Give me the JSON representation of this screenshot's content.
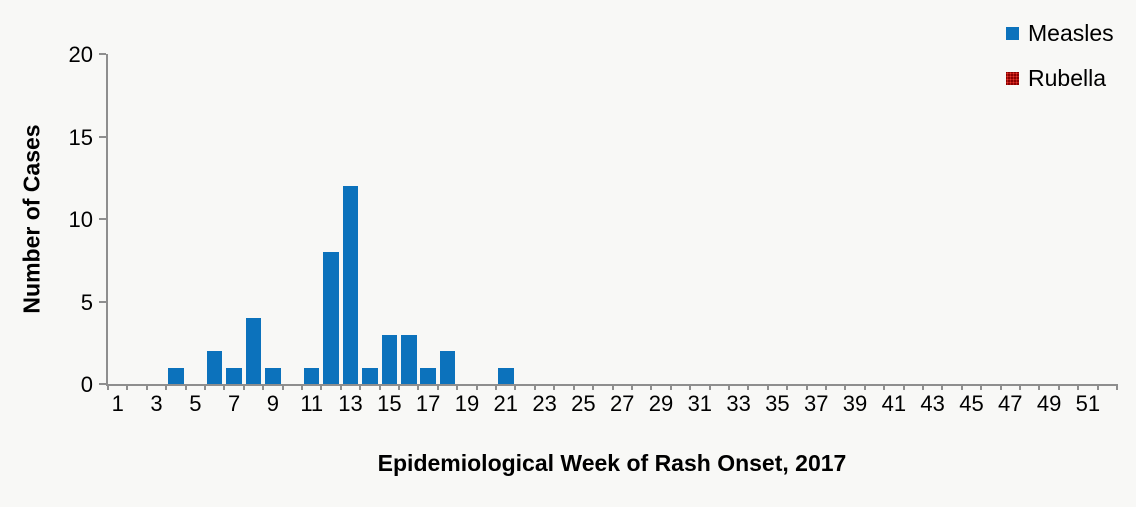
{
  "chart": {
    "background_color": "#F8F8F6",
    "axis_color": "#8E8E8E",
    "text_color": "#000000"
  },
  "chart_data": {
    "type": "bar",
    "title": "",
    "xlabel": "Epidemiological Week of Rash Onset, 2017",
    "ylabel": "Number of Cases",
    "categories": [
      1,
      2,
      3,
      4,
      5,
      6,
      7,
      8,
      9,
      10,
      11,
      12,
      13,
      14,
      15,
      16,
      17,
      18,
      19,
      20,
      21,
      22,
      23,
      24,
      25,
      26,
      27,
      28,
      29,
      30,
      31,
      32,
      33,
      34,
      35,
      36,
      37,
      38,
      39,
      40,
      41,
      42,
      43,
      44,
      45,
      46,
      47,
      48,
      49,
      50,
      51,
      52
    ],
    "x_tick_labels": [
      "1",
      "3",
      "5",
      "7",
      "9",
      "11",
      "13",
      "15",
      "17",
      "19",
      "21",
      "23",
      "25",
      "27",
      "29",
      "31",
      "33",
      "35",
      "37",
      "39",
      "41",
      "43",
      "45",
      "47",
      "49",
      "51"
    ],
    "yticks": [
      0,
      5,
      10,
      15,
      20
    ],
    "ylim": [
      0,
      20
    ],
    "grid": false,
    "legend_position": "top-right",
    "series": [
      {
        "name": "Measles",
        "color": "#0C72BC",
        "pattern": "solid",
        "values": [
          0,
          0,
          0,
          1,
          0,
          2,
          1,
          4,
          1,
          0,
          1,
          8,
          12,
          1,
          3,
          3,
          1,
          2,
          0,
          0,
          1,
          0,
          0,
          0,
          0,
          0,
          0,
          0,
          0,
          0,
          0,
          0,
          0,
          0,
          0,
          0,
          0,
          0,
          0,
          0,
          0,
          0,
          0,
          0,
          0,
          0,
          0,
          0,
          0,
          0,
          0,
          0
        ]
      },
      {
        "name": "Rubella",
        "color": "#C00000",
        "pattern": "dotted",
        "values": [
          0,
          0,
          0,
          0,
          0,
          0,
          0,
          0,
          0,
          0,
          0,
          0,
          0,
          0,
          0,
          0,
          0,
          0,
          0,
          0,
          0,
          0,
          0,
          0,
          0,
          0,
          0,
          0,
          0,
          0,
          0,
          0,
          0,
          0,
          0,
          0,
          0,
          0,
          0,
          0,
          0,
          0,
          0,
          0,
          0,
          0,
          0,
          0,
          0,
          0,
          0,
          0
        ]
      }
    ]
  }
}
